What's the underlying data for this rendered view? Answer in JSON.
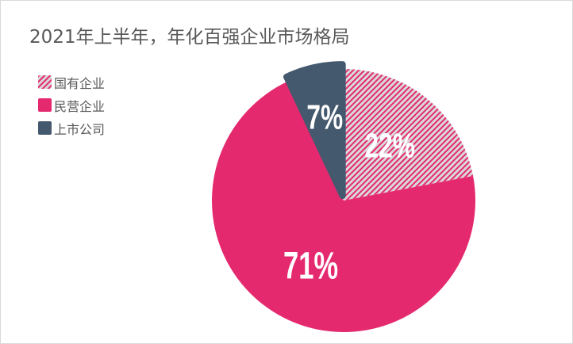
{
  "chart_data": {
    "type": "pie",
    "title": "2021年上半年，年化百强企业市场格局",
    "legend_position": "top-left",
    "slices": [
      {
        "name": "国有企业",
        "value": 22,
        "label": "22%",
        "color": "#e5296f",
        "pattern": "diagonal-hatch",
        "pattern_bg": "#d9d9d9"
      },
      {
        "name": "民营企业",
        "value": 71,
        "label": "71%",
        "color": "#e5296f"
      },
      {
        "name": "上市公司",
        "value": 7,
        "label": "7%",
        "color": "#44596e",
        "exploded": true
      }
    ]
  }
}
